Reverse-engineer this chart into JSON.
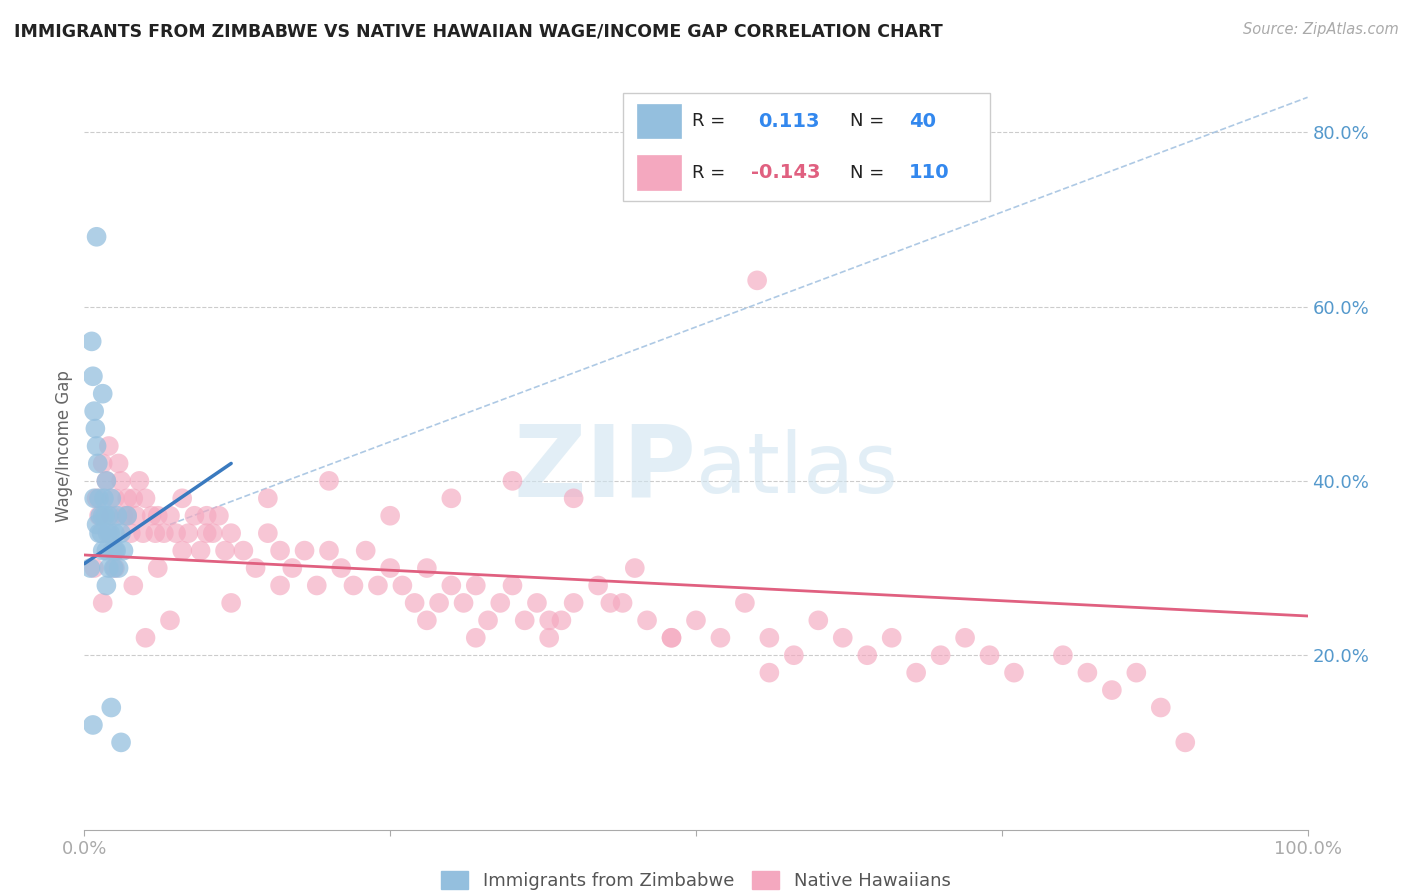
{
  "title": "IMMIGRANTS FROM ZIMBABWE VS NATIVE HAWAIIAN WAGE/INCOME GAP CORRELATION CHART",
  "source": "Source: ZipAtlas.com",
  "ylabel": "Wage/Income Gap",
  "right_ytick_labels": [
    "20.0%",
    "40.0%",
    "60.0%",
    "80.0%"
  ],
  "right_yticks": [
    0.2,
    0.4,
    0.6,
    0.8
  ],
  "xlim": [
    0.0,
    1.0
  ],
  "ylim": [
    0.0,
    0.88
  ],
  "r_zimbabwe": 0.113,
  "n_zimbabwe": 40,
  "r_hawaiian": -0.143,
  "n_hawaiian": 110,
  "color_zimbabwe": "#94bfde",
  "color_hawaiian": "#f4a8bf",
  "line_color_zimbabwe": "#3a7abf",
  "line_color_hawaiian": "#e06080",
  "diag_color": "#a0c0e0",
  "watermark_color": "#d0e4f0",
  "zim_x": [
    0.005,
    0.006,
    0.007,
    0.008,
    0.009,
    0.01,
    0.01,
    0.011,
    0.012,
    0.013,
    0.014,
    0.015,
    0.015,
    0.016,
    0.017,
    0.018,
    0.018,
    0.019,
    0.02,
    0.021,
    0.022,
    0.023,
    0.024,
    0.025,
    0.026,
    0.027,
    0.028,
    0.03,
    0.032,
    0.035,
    0.01,
    0.012,
    0.015,
    0.008,
    0.02,
    0.025,
    0.018,
    0.022,
    0.03,
    0.007
  ],
  "zim_y": [
    0.3,
    0.56,
    0.52,
    0.48,
    0.46,
    0.44,
    0.35,
    0.42,
    0.38,
    0.36,
    0.34,
    0.5,
    0.32,
    0.38,
    0.36,
    0.4,
    0.32,
    0.34,
    0.36,
    0.34,
    0.38,
    0.32,
    0.3,
    0.34,
    0.32,
    0.36,
    0.3,
    0.34,
    0.32,
    0.36,
    0.68,
    0.34,
    0.36,
    0.38,
    0.3,
    0.32,
    0.28,
    0.14,
    0.1,
    0.12
  ],
  "haw_x": [
    0.01,
    0.012,
    0.015,
    0.018,
    0.02,
    0.022,
    0.025,
    0.028,
    0.03,
    0.032,
    0.035,
    0.038,
    0.04,
    0.042,
    0.045,
    0.048,
    0.05,
    0.055,
    0.058,
    0.06,
    0.065,
    0.07,
    0.075,
    0.08,
    0.085,
    0.09,
    0.095,
    0.1,
    0.105,
    0.11,
    0.115,
    0.12,
    0.13,
    0.14,
    0.15,
    0.16,
    0.17,
    0.18,
    0.19,
    0.2,
    0.21,
    0.22,
    0.23,
    0.24,
    0.25,
    0.26,
    0.27,
    0.28,
    0.29,
    0.3,
    0.31,
    0.32,
    0.33,
    0.34,
    0.35,
    0.36,
    0.37,
    0.38,
    0.39,
    0.4,
    0.42,
    0.44,
    0.46,
    0.48,
    0.5,
    0.52,
    0.54,
    0.56,
    0.58,
    0.6,
    0.62,
    0.64,
    0.66,
    0.68,
    0.7,
    0.72,
    0.74,
    0.76,
    0.8,
    0.82,
    0.84,
    0.86,
    0.88,
    0.9,
    0.15,
    0.2,
    0.25,
    0.3,
    0.35,
    0.4,
    0.1,
    0.08,
    0.06,
    0.04,
    0.55,
    0.45,
    0.035,
    0.025,
    0.015,
    0.008,
    0.05,
    0.07,
    0.12,
    0.16,
    0.32,
    0.28,
    0.43,
    0.48,
    0.38,
    0.56
  ],
  "haw_y": [
    0.38,
    0.36,
    0.42,
    0.4,
    0.44,
    0.36,
    0.38,
    0.42,
    0.4,
    0.36,
    0.38,
    0.34,
    0.38,
    0.36,
    0.4,
    0.34,
    0.38,
    0.36,
    0.34,
    0.36,
    0.34,
    0.36,
    0.34,
    0.38,
    0.34,
    0.36,
    0.32,
    0.36,
    0.34,
    0.36,
    0.32,
    0.34,
    0.32,
    0.3,
    0.34,
    0.32,
    0.3,
    0.32,
    0.28,
    0.32,
    0.3,
    0.28,
    0.32,
    0.28,
    0.3,
    0.28,
    0.26,
    0.3,
    0.26,
    0.28,
    0.26,
    0.28,
    0.24,
    0.26,
    0.28,
    0.24,
    0.26,
    0.22,
    0.24,
    0.26,
    0.28,
    0.26,
    0.24,
    0.22,
    0.24,
    0.22,
    0.26,
    0.22,
    0.2,
    0.24,
    0.22,
    0.2,
    0.22,
    0.18,
    0.2,
    0.22,
    0.2,
    0.18,
    0.2,
    0.18,
    0.16,
    0.18,
    0.14,
    0.1,
    0.38,
    0.4,
    0.36,
    0.38,
    0.4,
    0.38,
    0.34,
    0.32,
    0.3,
    0.28,
    0.63,
    0.3,
    0.36,
    0.3,
    0.26,
    0.3,
    0.22,
    0.24,
    0.26,
    0.28,
    0.22,
    0.24,
    0.26,
    0.22,
    0.24,
    0.18
  ],
  "zim_line_x": [
    0.0,
    0.12
  ],
  "zim_line_y": [
    0.305,
    0.42
  ],
  "haw_line_x": [
    0.0,
    1.0
  ],
  "haw_line_y": [
    0.315,
    0.245
  ],
  "diag_line_x": [
    0.07,
    1.0
  ],
  "diag_line_y": [
    0.35,
    0.84
  ]
}
